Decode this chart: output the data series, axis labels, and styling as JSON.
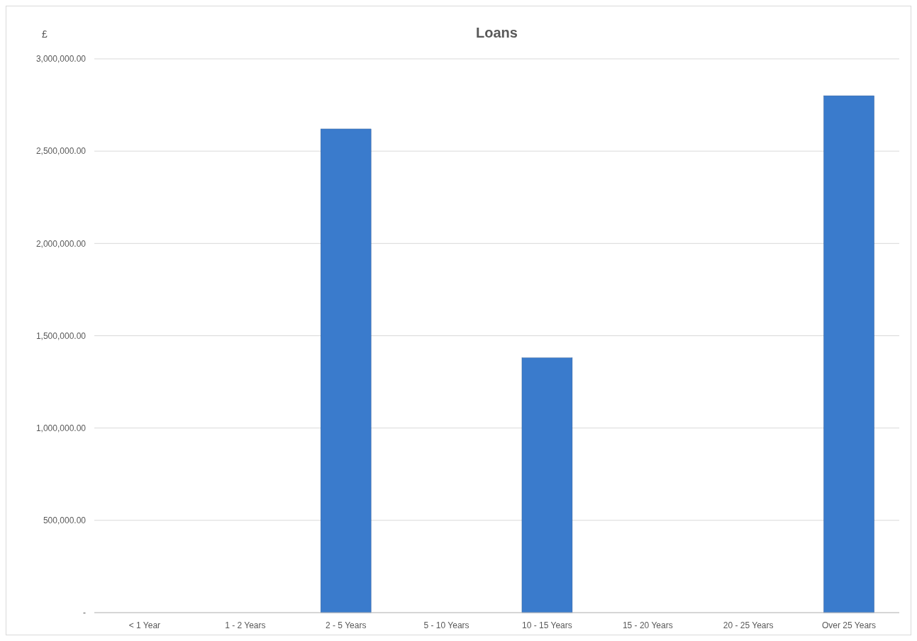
{
  "chart_data": {
    "type": "bar",
    "title": "Loans",
    "ylabel": "£",
    "categories": [
      "< 1 Year",
      "1 - 2 Years",
      "2 - 5 Years",
      "5 - 10 Years",
      "10 - 15 Years",
      "15 - 20 Years",
      "20 - 25 Years",
      "Over 25 Years"
    ],
    "values": [
      0,
      0,
      2620000,
      0,
      1380000,
      0,
      0,
      2800000
    ],
    "color": "#3a7bcc",
    "ylim": [
      0,
      3000000
    ],
    "yticks": [
      {
        "value": 0,
        "label": "-"
      },
      {
        "value": 500000,
        "label": "500,000.00"
      },
      {
        "value": 1000000,
        "label": "1,000,000.00"
      },
      {
        "value": 1500000,
        "label": "1,500,000.00"
      },
      {
        "value": 2000000,
        "label": "2,000,000.00"
      },
      {
        "value": 2500000,
        "label": "2,500,000.00"
      },
      {
        "value": 3000000,
        "label": "3,000,000.00"
      }
    ],
    "grid": "y"
  }
}
